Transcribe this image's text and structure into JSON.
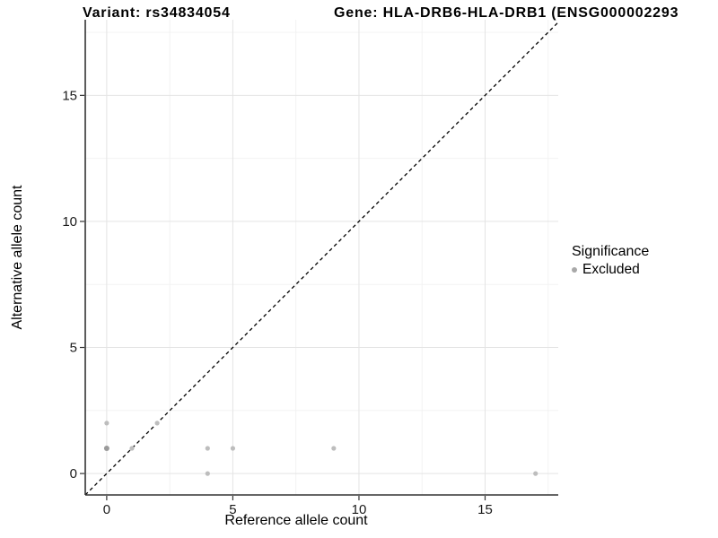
{
  "titles": {
    "left": "Variant: rs34834054",
    "right": "Gene: HLA-DRB6-HLA-DRB1 (ENSG000002293"
  },
  "chart_data": {
    "type": "scatter",
    "xlabel": "Reference allele count",
    "ylabel": "Alternative allele count",
    "xlim": [
      -0.85,
      17.9
    ],
    "ylim": [
      -0.85,
      18.0
    ],
    "x_ticks": {
      "major": [
        0,
        5,
        10,
        15
      ],
      "labels": [
        "0",
        "5",
        "10",
        "15"
      ],
      "minor": [
        2.5,
        7.5,
        12.5,
        17.5
      ]
    },
    "y_ticks": {
      "major": [
        0,
        5,
        10,
        15
      ],
      "labels": [
        "0",
        "5",
        "10",
        "15"
      ],
      "minor": [
        2.5,
        7.5,
        12.5,
        17.5
      ]
    },
    "grid": {
      "shown": true,
      "major_color": "#e4e4e4",
      "minor_color": "#f1f1f1"
    },
    "identity_line": {
      "equation": "y = x",
      "style": "dashed",
      "color": "#000000"
    },
    "series": [
      {
        "name": "Excluded",
        "point_color": "#bdbdbd",
        "overlap_point_color": "#9a9a9a",
        "points": [
          {
            "x": 0,
            "y": 1,
            "count": 2
          },
          {
            "x": 0,
            "y": 2,
            "count": 1
          },
          {
            "x": 1,
            "y": 1,
            "count": 1
          },
          {
            "x": 2,
            "y": 2,
            "count": 1
          },
          {
            "x": 4,
            "y": 0,
            "count": 1
          },
          {
            "x": 4,
            "y": 1,
            "count": 1
          },
          {
            "x": 5,
            "y": 1,
            "count": 1
          },
          {
            "x": 9,
            "y": 1,
            "count": 1
          },
          {
            "x": 17,
            "y": 0,
            "count": 1
          }
        ]
      }
    ],
    "legend": {
      "title": "Significance",
      "position": "right",
      "entries": [
        {
          "label": "Excluded",
          "color": "#a8a8a8"
        }
      ]
    },
    "axis_color": "#333333",
    "tick_label_color": "#1a1a1a"
  }
}
